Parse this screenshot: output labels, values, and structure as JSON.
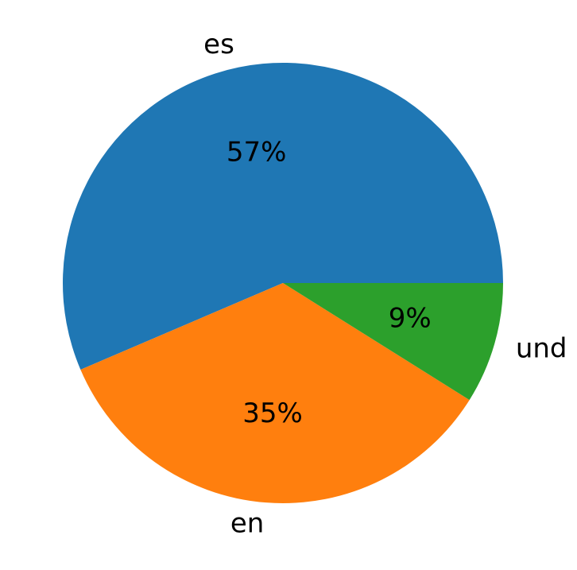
{
  "chart_data": {
    "type": "pie",
    "categories": [
      "es",
      "en",
      "und"
    ],
    "values": [
      57,
      35,
      9
    ],
    "value_labels": [
      "57%",
      "35%",
      "9%"
    ],
    "colors": [
      "#1f77b4",
      "#ff7f0e",
      "#2ca02c"
    ]
  }
}
